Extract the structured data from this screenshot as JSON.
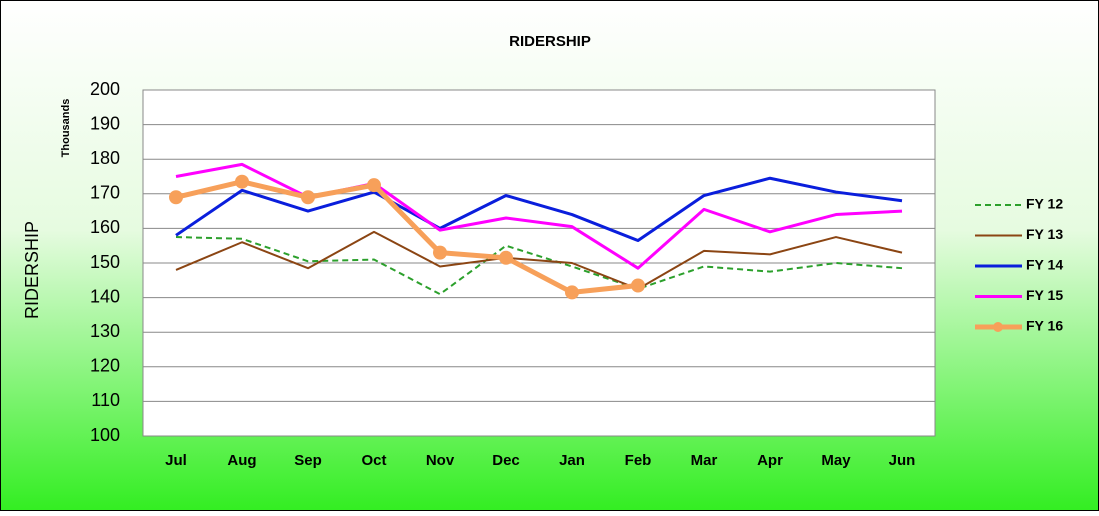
{
  "chart_data": {
    "type": "line",
    "title": "RIDERSHIP",
    "y_label": "RIDERSHIP",
    "y_unit_label": "Thousands",
    "categories": [
      "Jul",
      "Aug",
      "Sep",
      "Oct",
      "Nov",
      "Dec",
      "Jan",
      "Feb",
      "Mar",
      "Apr",
      "May",
      "Jun"
    ],
    "series": [
      {
        "name": "FY 12",
        "color": "#2ca02c",
        "dash": true,
        "marker": false,
        "line_width": 2,
        "values": [
          157.5,
          157,
          150.5,
          151,
          141,
          155,
          149,
          142.5,
          149,
          147.5,
          150,
          148.5
        ]
      },
      {
        "name": "FY 13",
        "color": "#8b4513",
        "dash": false,
        "marker": false,
        "line_width": 2,
        "values": [
          148,
          156,
          148.5,
          159,
          149,
          151.5,
          150,
          142.5,
          153.5,
          152.5,
          157.5,
          153
        ]
      },
      {
        "name": "FY 14",
        "color": "#0a1edc",
        "dash": false,
        "marker": false,
        "line_width": 3,
        "values": [
          158,
          171,
          165,
          170.5,
          160,
          169.5,
          164,
          156.5,
          169.5,
          174.5,
          170.5,
          168
        ]
      },
      {
        "name": "FY 15",
        "color": "#ff00ff",
        "dash": false,
        "marker": false,
        "line_width": 3,
        "values": [
          175,
          178.5,
          169,
          173,
          159.5,
          163,
          160.5,
          148.5,
          165.5,
          159,
          164,
          165
        ]
      },
      {
        "name": "FY 16",
        "color": "#f7a05a",
        "dash": false,
        "marker": true,
        "line_width": 5,
        "values": [
          169,
          173.5,
          169,
          172.5,
          153,
          151.5,
          141.5,
          143.5,
          null,
          null,
          null,
          null
        ]
      }
    ],
    "ylim": [
      100,
      200
    ],
    "yticks": [
      100,
      110,
      120,
      130,
      140,
      150,
      160,
      170,
      180,
      190,
      200
    ],
    "grid": true,
    "legend": "right"
  }
}
